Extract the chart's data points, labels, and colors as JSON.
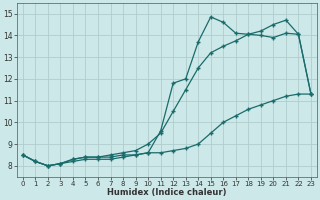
{
  "xlabel": "Humidex (Indice chaleur)",
  "background_color": "#cde8e8",
  "grid_color": "#b0cccc",
  "line_color": "#1a6b6b",
  "xlim": [
    -0.5,
    23.5
  ],
  "ylim": [
    7.5,
    15.5
  ],
  "xticks": [
    0,
    1,
    2,
    3,
    4,
    5,
    6,
    7,
    8,
    9,
    10,
    11,
    12,
    13,
    14,
    15,
    16,
    17,
    18,
    19,
    20,
    21,
    22,
    23
  ],
  "yticks": [
    8,
    9,
    10,
    11,
    12,
    13,
    14,
    15
  ],
  "series1_x": [
    0,
    1,
    2,
    3,
    4,
    5,
    6,
    7,
    8,
    9,
    10,
    11,
    12,
    13,
    14,
    15,
    16,
    17,
    18,
    19,
    20,
    21,
    22,
    23
  ],
  "series1_y": [
    8.5,
    8.2,
    8.0,
    8.1,
    8.3,
    8.4,
    8.4,
    8.4,
    8.5,
    8.5,
    8.6,
    9.6,
    11.8,
    12.0,
    13.7,
    14.85,
    14.6,
    14.1,
    14.05,
    14.0,
    13.9,
    14.1,
    14.05,
    11.3
  ],
  "series2_x": [
    0,
    1,
    2,
    3,
    4,
    5,
    6,
    7,
    8,
    9,
    10,
    11,
    12,
    13,
    14,
    15,
    16,
    17,
    18,
    19,
    20,
    21,
    22,
    23
  ],
  "series2_y": [
    8.5,
    8.2,
    8.0,
    8.1,
    8.3,
    8.4,
    8.4,
    8.5,
    8.6,
    8.7,
    9.0,
    9.5,
    10.5,
    11.5,
    12.5,
    13.2,
    13.5,
    13.75,
    14.05,
    14.2,
    14.5,
    14.7,
    14.05,
    11.3
  ],
  "series3_x": [
    0,
    1,
    2,
    3,
    4,
    5,
    6,
    7,
    8,
    9,
    10,
    11,
    12,
    13,
    14,
    15,
    16,
    17,
    18,
    19,
    20,
    21,
    22,
    23
  ],
  "series3_y": [
    8.5,
    8.2,
    8.0,
    8.1,
    8.2,
    8.3,
    8.3,
    8.3,
    8.4,
    8.5,
    8.6,
    8.6,
    8.7,
    8.8,
    9.0,
    9.5,
    10.0,
    10.3,
    10.6,
    10.8,
    11.0,
    11.2,
    11.3,
    11.3
  ]
}
